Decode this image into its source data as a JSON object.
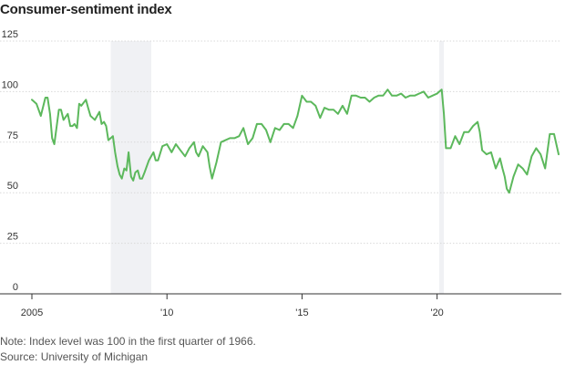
{
  "chart_data": {
    "type": "line",
    "title": "Consumer-sentiment index",
    "xlabel": "",
    "ylabel": "",
    "xlim": [
      2005.0,
      2024.6
    ],
    "ylim": [
      0,
      125
    ],
    "y_ticks": [
      0,
      25,
      50,
      75,
      100,
      125
    ],
    "x_ticks": [
      {
        "value": 2005,
        "label": "2005"
      },
      {
        "value": 2010,
        "label": "'10"
      },
      {
        "value": 2015,
        "label": "'15"
      },
      {
        "value": 2020,
        "label": "'20"
      }
    ],
    "grid": "horizontal",
    "line_color": "#5cb85c",
    "recession_color": "#f0f1f4",
    "recessions": [
      [
        2007.92,
        2009.42
      ],
      [
        2020.08,
        2020.25
      ]
    ],
    "series": [
      {
        "x": [
          2005.0,
          2005.17,
          2005.33,
          2005.5,
          2005.58,
          2005.67,
          2005.75,
          2005.83,
          2006.0,
          2006.08,
          2006.17,
          2006.33,
          2006.42,
          2006.5,
          2006.58,
          2006.67,
          2006.75,
          2006.83,
          2007.0,
          2007.08,
          2007.17,
          2007.25,
          2007.33,
          2007.5,
          2007.58,
          2007.67,
          2007.75,
          2007.83,
          2008.0,
          2008.08,
          2008.17,
          2008.25,
          2008.33,
          2008.42,
          2008.5,
          2008.58,
          2008.67,
          2008.75,
          2008.83,
          2008.92,
          2009.0,
          2009.08,
          2009.17,
          2009.33,
          2009.5,
          2009.58,
          2009.67,
          2009.83,
          2010.0,
          2010.17,
          2010.33,
          2010.5,
          2010.67,
          2010.83,
          2011.0,
          2011.08,
          2011.17,
          2011.33,
          2011.5,
          2011.58,
          2011.67,
          2011.83,
          2012.0,
          2012.17,
          2012.33,
          2012.5,
          2012.67,
          2012.83,
          2013.0,
          2013.17,
          2013.33,
          2013.5,
          2013.67,
          2013.83,
          2014.0,
          2014.17,
          2014.33,
          2014.5,
          2014.67,
          2014.83,
          2015.0,
          2015.17,
          2015.33,
          2015.5,
          2015.67,
          2015.83,
          2016.0,
          2016.17,
          2016.33,
          2016.5,
          2016.67,
          2016.83,
          2017.0,
          2017.17,
          2017.33,
          2017.5,
          2017.67,
          2017.83,
          2018.0,
          2018.17,
          2018.33,
          2018.5,
          2018.67,
          2018.83,
          2019.0,
          2019.17,
          2019.33,
          2019.5,
          2019.67,
          2019.83,
          2020.0,
          2020.08,
          2020.17,
          2020.25,
          2020.33,
          2020.5,
          2020.67,
          2020.83,
          2021.0,
          2021.17,
          2021.33,
          2021.5,
          2021.58,
          2021.67,
          2021.83,
          2022.0,
          2022.17,
          2022.33,
          2022.42,
          2022.5,
          2022.58,
          2022.67,
          2022.83,
          2023.0,
          2023.17,
          2023.33,
          2023.5,
          2023.67,
          2023.83,
          2024.0,
          2024.17,
          2024.33,
          2024.5
        ],
        "values": [
          96,
          94,
          88,
          97,
          97,
          89,
          77,
          74,
          91,
          91,
          86,
          89,
          83,
          83,
          84,
          82,
          94,
          93,
          96,
          92,
          88,
          87,
          86,
          90,
          84,
          85,
          83,
          76,
          78,
          70,
          63,
          59,
          57,
          62,
          61,
          70,
          58,
          56,
          60,
          61,
          57,
          57,
          60,
          66,
          70,
          66,
          66,
          73,
          74,
          70,
          74,
          71,
          68,
          72,
          75,
          70,
          68,
          73,
          70,
          63,
          57,
          65,
          75,
          76,
          77,
          77,
          78,
          82,
          74,
          77,
          84,
          84,
          81,
          75,
          82,
          81,
          84,
          84,
          82,
          88,
          98,
          95,
          95,
          93,
          87,
          92,
          91,
          91,
          89,
          93,
          89,
          98,
          98,
          97,
          97,
          95,
          97,
          98,
          98,
          101,
          98,
          98,
          99,
          97,
          98,
          98,
          99,
          100,
          97,
          98,
          99,
          100,
          101,
          89,
          72,
          72,
          78,
          74,
          80,
          80,
          83,
          85,
          80,
          71,
          69,
          70,
          62,
          67,
          62,
          58,
          52,
          50,
          58,
          64,
          62,
          59,
          68,
          72,
          69,
          62,
          79,
          79,
          69
        ]
      }
    ],
    "notes": [
      "Note: Index level was 100 in the first quarter of 1966.",
      "Source: University of Michigan"
    ]
  }
}
